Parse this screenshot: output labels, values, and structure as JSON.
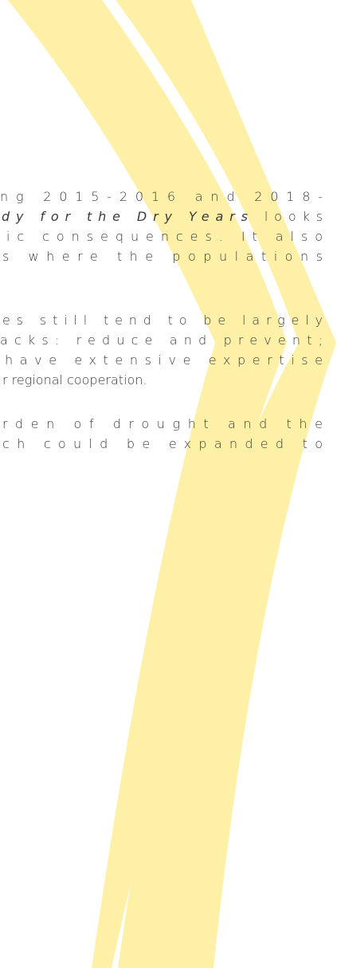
{
  "paragraphs": [
    {
      "lines": [
        {
          "text": "ng 2015-2016 and 2018-"
        },
        {
          "italic": "dy for the Dry Years",
          "text": " looks"
        },
        {
          "text": "ic consequences. It also"
        },
        {
          "text": "s where the populations"
        }
      ]
    },
    {
      "lines": [
        {
          "text": "es still tend to be largely"
        },
        {
          "text": "acks: reduce and prevent;"
        },
        {
          "text": "have extensive expertise"
        },
        {
          "text": "r regional cooperation."
        }
      ]
    },
    {
      "lines": [
        {
          "text": "rden of drought and the"
        },
        {
          "text": "ch could be expanded to"
        }
      ]
    }
  ]
}
